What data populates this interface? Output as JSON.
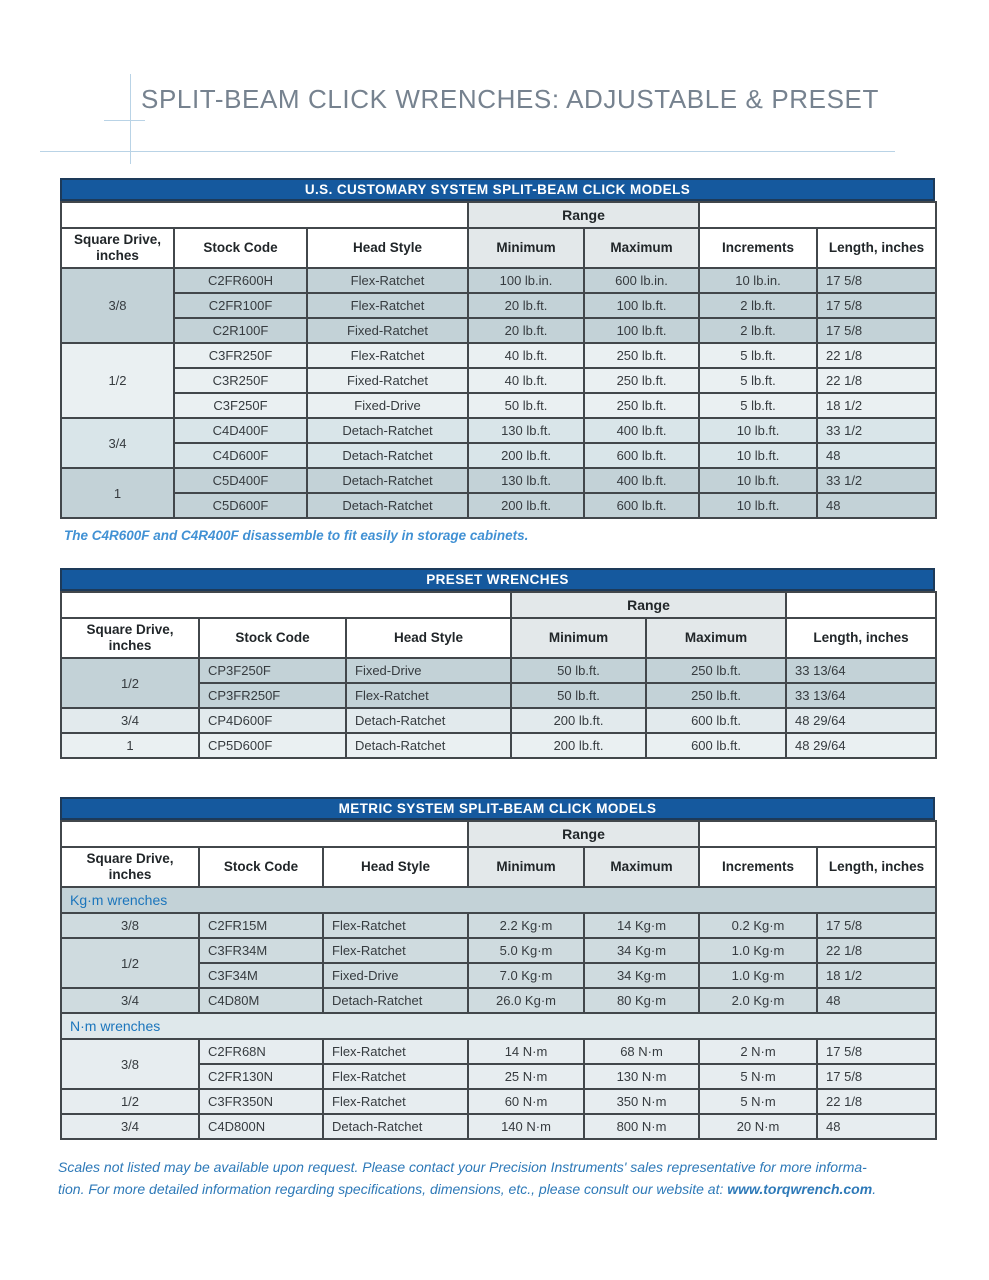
{
  "page": {
    "title": "SPLIT-BEAM CLICK WRENCHES: ADJUSTABLE & PRESET"
  },
  "colors": {
    "bar_blue": "#15599e",
    "header_gray": "#e3e8ea",
    "title_gray": "#76828f",
    "deco_blue": "#b9d3e6",
    "note_blue": "#4191d4",
    "footer_blue": "#2d79b8",
    "section_blue": "#1b75bc",
    "row_dark": "#c3d2d7",
    "row_light": "#eaf0f2",
    "row_medium": "#d9e5e9"
  },
  "tables": [
    {
      "id": "us",
      "bar_title": "U.S. CUSTOMARY SYSTEM SPLIT-BEAM CLICK MODELS",
      "range_label": "Range",
      "headers": [
        "Square Drive, inches",
        "Stock Code",
        "Head Style",
        "Minimum",
        "Maximum",
        "Increments",
        "Length, inches"
      ],
      "widths": [
        113,
        133,
        161,
        116,
        115,
        118,
        119
      ],
      "aligns": [
        "center",
        "center",
        "center",
        "center",
        "center",
        "center",
        "left"
      ],
      "range_left_span": 3,
      "range_span": 2,
      "range_right_span": 2,
      "blocks": [
        {
          "type": "group",
          "drive": "3/8",
          "shade": "sh-dark",
          "rows": [
            [
              "C2FR600H",
              "Flex-Ratchet",
              "100 lb.in.",
              "600 lb.in.",
              "10 lb.in.",
              "17 5/8"
            ],
            [
              "C2FR100F",
              "Flex-Ratchet",
              "20 lb.ft.",
              "100 lb.ft.",
              "2 lb.ft.",
              "17 5/8"
            ],
            [
              "C2R100F",
              "Fixed-Ratchet",
              "20 lb.ft.",
              "100 lb.ft.",
              "2 lb.ft.",
              "17 5/8"
            ]
          ]
        },
        {
          "type": "group",
          "drive": "1/2",
          "shade": "sh-light",
          "rows": [
            [
              "C3FR250F",
              "Flex-Ratchet",
              "40 lb.ft.",
              "250 lb.ft.",
              "5 lb.ft.",
              "22 1/8"
            ],
            [
              "C3R250F",
              "Fixed-Ratchet",
              "40 lb.ft.",
              "250 lb.ft.",
              "5 lb.ft.",
              "22 1/8"
            ],
            [
              "C3F250F",
              "Fixed-Drive",
              "50 lb.ft.",
              "250 lb.ft.",
              "5 lb.ft.",
              "18 1/2"
            ]
          ]
        },
        {
          "type": "group",
          "drive": "3/4",
          "shade": "sh-med",
          "rows": [
            [
              "C4D400F",
              "Detach-Ratchet",
              "130 lb.ft.",
              "400 lb.ft.",
              "10 lb.ft.",
              "33 1/2"
            ],
            [
              "C4D600F",
              "Detach-Ratchet",
              "200 lb.ft.",
              "600 lb.ft.",
              "10 lb.ft.",
              "48"
            ]
          ]
        },
        {
          "type": "group",
          "drive": "1",
          "shade": "sh-dark",
          "rows": [
            [
              "C5D400F",
              "Detach-Ratchet",
              "130 lb.ft.",
              "400 lb.ft.",
              "10 lb.ft.",
              "33 1/2"
            ],
            [
              "C5D600F",
              "Detach-Ratchet",
              "200 lb.ft.",
              "600 lb.ft.",
              "10 lb.ft.",
              "48"
            ]
          ]
        }
      ]
    },
    {
      "id": "preset",
      "bar_title": "PRESET WRENCHES",
      "range_label": "Range",
      "headers": [
        "Square Drive, inches",
        "Stock Code",
        "Head Style",
        "Minimum",
        "Maximum",
        "Length, inches"
      ],
      "widths": [
        138,
        147,
        165,
        135,
        140,
        150
      ],
      "aligns": [
        "center",
        "left",
        "left",
        "center",
        "center",
        "left"
      ],
      "range_left_span": 3,
      "range_span": 2,
      "range_right_span": 1,
      "blocks": [
        {
          "type": "group",
          "drive": "1/2",
          "shade": "sh-dark",
          "rows": [
            [
              "CP3F250F",
              "Fixed-Drive",
              "50 lb.ft.",
              "250 lb.ft.",
              "33 13/64"
            ],
            [
              "CP3FR250F",
              "Flex-Ratchet",
              "50 lb.ft.",
              "250 lb.ft.",
              "33 13/64"
            ]
          ]
        },
        {
          "type": "group",
          "drive": "3/4",
          "shade": "sh-medlight",
          "rows": [
            [
              "CP4D600F",
              "Detach-Ratchet",
              "200 lb.ft.",
              "600 lb.ft.",
              "48 29/64"
            ]
          ]
        },
        {
          "type": "group",
          "drive": "1",
          "shade": "sh-light",
          "rows": [
            [
              "CP5D600F",
              "Detach-Ratchet",
              "200 lb.ft.",
              "600 lb.ft.",
              "48 29/64"
            ]
          ]
        }
      ]
    },
    {
      "id": "metric",
      "bar_title": "METRIC SYSTEM SPLIT-BEAM CLICK MODELS",
      "range_label": "Range",
      "headers": [
        "Square Drive, inches",
        "Stock Code",
        "Head Style",
        "Minimum",
        "Maximum",
        "Increments",
        "Length, inches"
      ],
      "widths": [
        138,
        124,
        145,
        116,
        115,
        118,
        119
      ],
      "aligns": [
        "center",
        "left",
        "left",
        "center",
        "center",
        "center",
        "left"
      ],
      "range_left_span": 3,
      "range_span": 2,
      "range_right_span": 2,
      "blocks": [
        {
          "type": "section",
          "label": "Kg·m wrenches",
          "shade": "sh-secdark"
        },
        {
          "type": "group",
          "drive": "3/8",
          "shade": "sh-kgm",
          "rows": [
            [
              "C2FR15M",
              "Flex-Ratchet",
              "2.2 Kg·m",
              "14 Kg·m",
              "0.2 Kg·m",
              "17 5/8"
            ]
          ]
        },
        {
          "type": "group",
          "drive": "1/2",
          "shade": "sh-kgm",
          "rows": [
            [
              "C3FR34M",
              "Flex-Ratchet",
              "5.0 Kg·m",
              "34 Kg·m",
              "1.0 Kg·m",
              "22 1/8"
            ],
            [
              "C3F34M",
              "Fixed-Drive",
              "7.0 Kg·m",
              "34 Kg·m",
              "1.0 Kg·m",
              "18 1/2"
            ]
          ]
        },
        {
          "type": "group",
          "drive": "3/4",
          "shade": "sh-kgm",
          "rows": [
            [
              "C4D80M",
              "Detach-Ratchet",
              "26.0 Kg·m",
              "80 Kg·m",
              "2.0 Kg·m",
              "48"
            ]
          ]
        },
        {
          "type": "section",
          "label": "N·m wrenches",
          "shade": "sh-seclight"
        },
        {
          "type": "group",
          "drive": "3/8",
          "shade": "sh-nm",
          "rows": [
            [
              "C2FR68N",
              "Flex-Ratchet",
              "14 N·m",
              "68 N·m",
              "2 N·m",
              "17 5/8"
            ],
            [
              "C2FR130N",
              "Flex-Ratchet",
              "25 N·m",
              "130 N·m",
              "5 N·m",
              "17 5/8"
            ]
          ]
        },
        {
          "type": "group",
          "drive": "1/2",
          "shade": "sh-nm",
          "rows": [
            [
              "C3FR350N",
              "Flex-Ratchet",
              "60 N·m",
              "350 N·m",
              "5 N·m",
              "22 1/8"
            ]
          ]
        },
        {
          "type": "group",
          "drive": "3/4",
          "shade": "sh-nm",
          "rows": [
            [
              "C4D800N",
              "Detach-Ratchet",
              "140 N·m",
              "800 N·m",
              "20 N·m",
              "48"
            ]
          ]
        }
      ]
    }
  ],
  "us_note": "The C4R600F and C4R400F disassemble to fit easily in storage cabinets.",
  "footer": {
    "line1": "Scales not listed may be available upon request. Please contact your Precision Instruments' sales representative for more informa-",
    "line2": "tion. For more detailed information regarding specifications, dimensions, etc., please consult our website at: ",
    "link": "www.torqwrench.com",
    "suffix": "."
  }
}
